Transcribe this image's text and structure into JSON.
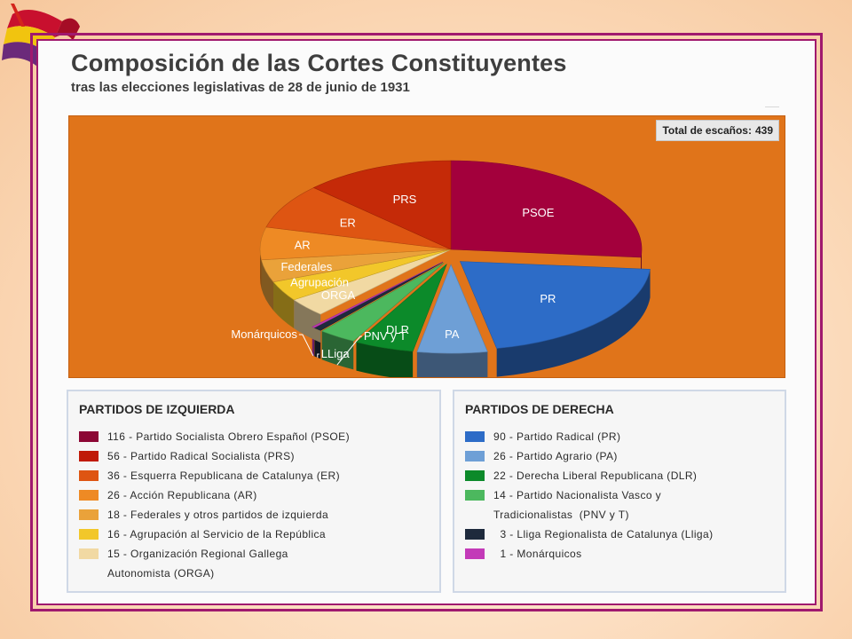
{
  "header": {
    "title": "Composición de las Cortes Constituyentes",
    "subtitle": "tras las elecciones legislativas de 28 de junio de 1931"
  },
  "flag_colors": [
    "#c8102e",
    "#f1c40f",
    "#6b2a7a"
  ],
  "chart_data": {
    "type": "pie",
    "total_label": "Total de escaños:",
    "total_value": "439",
    "slices": [
      {
        "label": "PSOE",
        "value": 116,
        "color": "#a3003c"
      },
      {
        "label": "PR",
        "value": 90,
        "color": "#2d6cc7"
      },
      {
        "label": "PA",
        "value": 26,
        "color": "#6e9fd6"
      },
      {
        "label": "DLR",
        "value": 22,
        "color": "#0c8a2a"
      },
      {
        "label": "PNV y T",
        "value": 14,
        "color": "#4cb85e"
      },
      {
        "label": "LLiga",
        "value": 3,
        "color": "#1e2a3c"
      },
      {
        "label": "Monárquicos",
        "value": 1,
        "color": "#c33ab8"
      },
      {
        "label": "ORGA",
        "value": 15,
        "color": "#f1d9a3"
      },
      {
        "label": "Agrupación",
        "value": 16,
        "color": "#f2c72a"
      },
      {
        "label": "Federales",
        "value": 18,
        "color": "#eaa23a"
      },
      {
        "label": "AR",
        "value": 26,
        "color": "#ee8a24"
      },
      {
        "label": "ER",
        "value": 36,
        "color": "#de5512"
      },
      {
        "label": "PRS",
        "value": 56,
        "color": "#c52a08"
      }
    ]
  },
  "legend_left": {
    "heading": "PARTIDOS DE IZQUIERDA",
    "items": [
      {
        "text": "116 - Partido Socialista Obrero Español (PSOE)",
        "color": "#8c0735"
      },
      {
        "text": "56 - Partido Radical Socialista (PRS)",
        "color": "#c01a08"
      },
      {
        "text": "36 - Esquerra Republicana de Catalunya (ER)",
        "color": "#de5512"
      },
      {
        "text": "26 - Acción Republicana (AR)",
        "color": "#ee8a24"
      },
      {
        "text": "18 - Federales y otros partidos de izquierda",
        "color": "#eaa23a"
      },
      {
        "text": "16 - Agrupación al Servicio de la República",
        "color": "#f2c72a"
      },
      {
        "text": "15 - Organización Regional Gallega",
        "text2": "Autonomista (ORGA)",
        "color": "#f1d9a3"
      }
    ]
  },
  "legend_right": {
    "heading": "PARTIDOS DE DERECHA",
    "items": [
      {
        "text": "90 - Partido Radical (PR)",
        "color": "#2d6cc7"
      },
      {
        "text": "26 - Partido Agrario (PA)",
        "color": "#6e9fd6"
      },
      {
        "text": "22 - Derecha Liberal Republicana (DLR)",
        "color": "#0c8a2a"
      },
      {
        "text": "14 - Partido Nacionalista Vasco y",
        "text2": "Tradicionalistas  (PNV y T)",
        "color": "#4cb85e"
      },
      {
        "text": "  3 - Lliga Regionalista de Catalunya (Lliga)",
        "color": "#1e2a3c"
      },
      {
        "text": "  1 - Monárquicos",
        "color": "#c33ab8"
      }
    ]
  }
}
